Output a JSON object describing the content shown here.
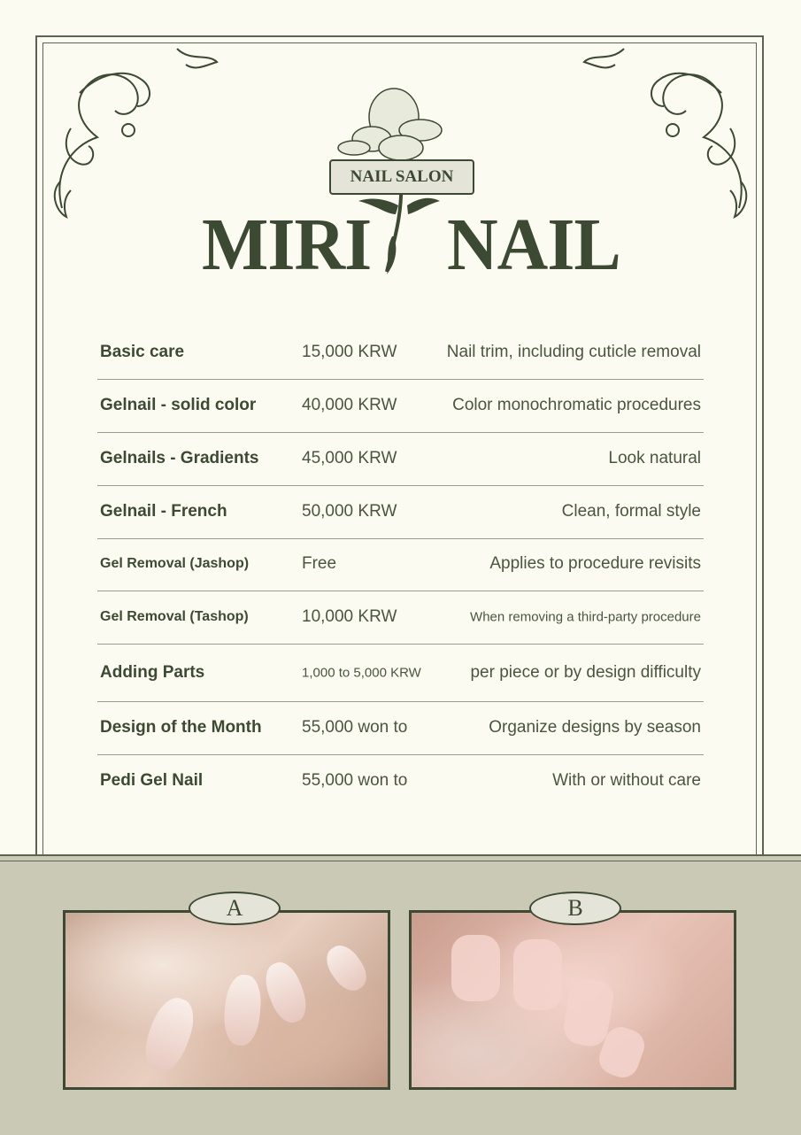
{
  "header": {
    "tagline": "NAIL SALON",
    "brand_left": "MIRI",
    "brand_right": "NAIL"
  },
  "menu": [
    {
      "name": "Basic care",
      "price": "15,000 KRW",
      "description": "Nail trim, including cuticle removal"
    },
    {
      "name": "Gelnail - solid color",
      "price": "40,000 KRW",
      "description": "Color monochromatic procedures"
    },
    {
      "name": "Gelnails - Gradients",
      "price": "45,000 KRW",
      "description": "Look natural"
    },
    {
      "name": "Gelnail - French",
      "price": "50,000 KRW",
      "description": "Clean, formal style"
    },
    {
      "name": "Gel Removal (Jashop)",
      "price": "Free",
      "description": "Applies to procedure revisits"
    },
    {
      "name": "Gel Removal (Tashop)",
      "price": "10,000 KRW",
      "description": "When removing a third-party procedure"
    },
    {
      "name": "Adding Parts",
      "price": "1,000 to 5,000 KRW",
      "description": "per piece or by design difficulty"
    },
    {
      "name": "Design of the Month",
      "price": "55,000 won to",
      "description": "Organize designs by season"
    },
    {
      "name": "Pedi Gel Nail",
      "price": "55,000 won to",
      "description": "With or without care"
    }
  ],
  "gallery": [
    {
      "label": "A"
    },
    {
      "label": "B"
    }
  ],
  "colors": {
    "primary": "#3d4a33",
    "background": "#fbfbf1",
    "band": "#c9c9b6"
  }
}
